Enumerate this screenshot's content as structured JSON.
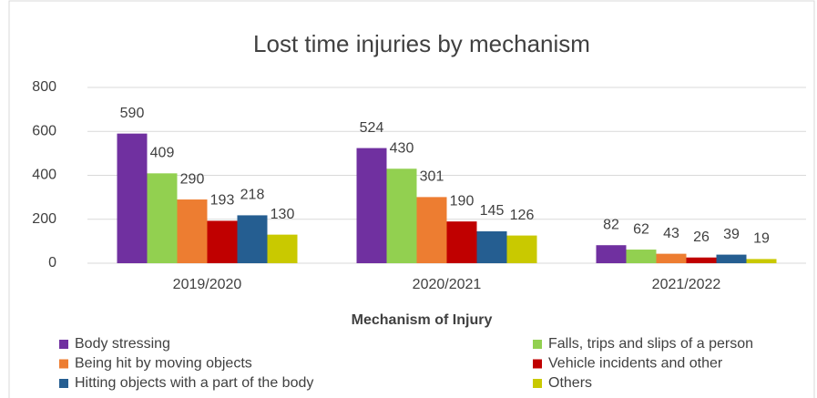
{
  "chart_data": {
    "type": "bar",
    "title": "Lost time injuries by mechanism",
    "x_label": "Mechanism of Injury",
    "categories": [
      "2019/2020",
      "2020/2021",
      "2021/2022"
    ],
    "series": [
      {
        "name": "Body stressing",
        "color": "#7030a0",
        "values": [
          590,
          524,
          82
        ]
      },
      {
        "name": "Falls, trips and slips of a person",
        "color": "#92d050",
        "values": [
          409,
          430,
          62
        ]
      },
      {
        "name": "Being hit by moving objects",
        "color": "#ed7d31",
        "values": [
          290,
          301,
          43
        ]
      },
      {
        "name": "Vehicle incidents and other",
        "color": "#c00000",
        "values": [
          193,
          190,
          26
        ]
      },
      {
        "name": "Hitting objects with a part of the body",
        "color": "#255e91",
        "values": [
          218,
          145,
          39
        ]
      },
      {
        "name": "Others",
        "color": "#c9c900",
        "values": [
          130,
          126,
          19
        ]
      }
    ],
    "ylim": [
      0,
      800
    ],
    "yticks": [
      0,
      200,
      400,
      600,
      800
    ],
    "grid": true,
    "legend": "bottom"
  }
}
